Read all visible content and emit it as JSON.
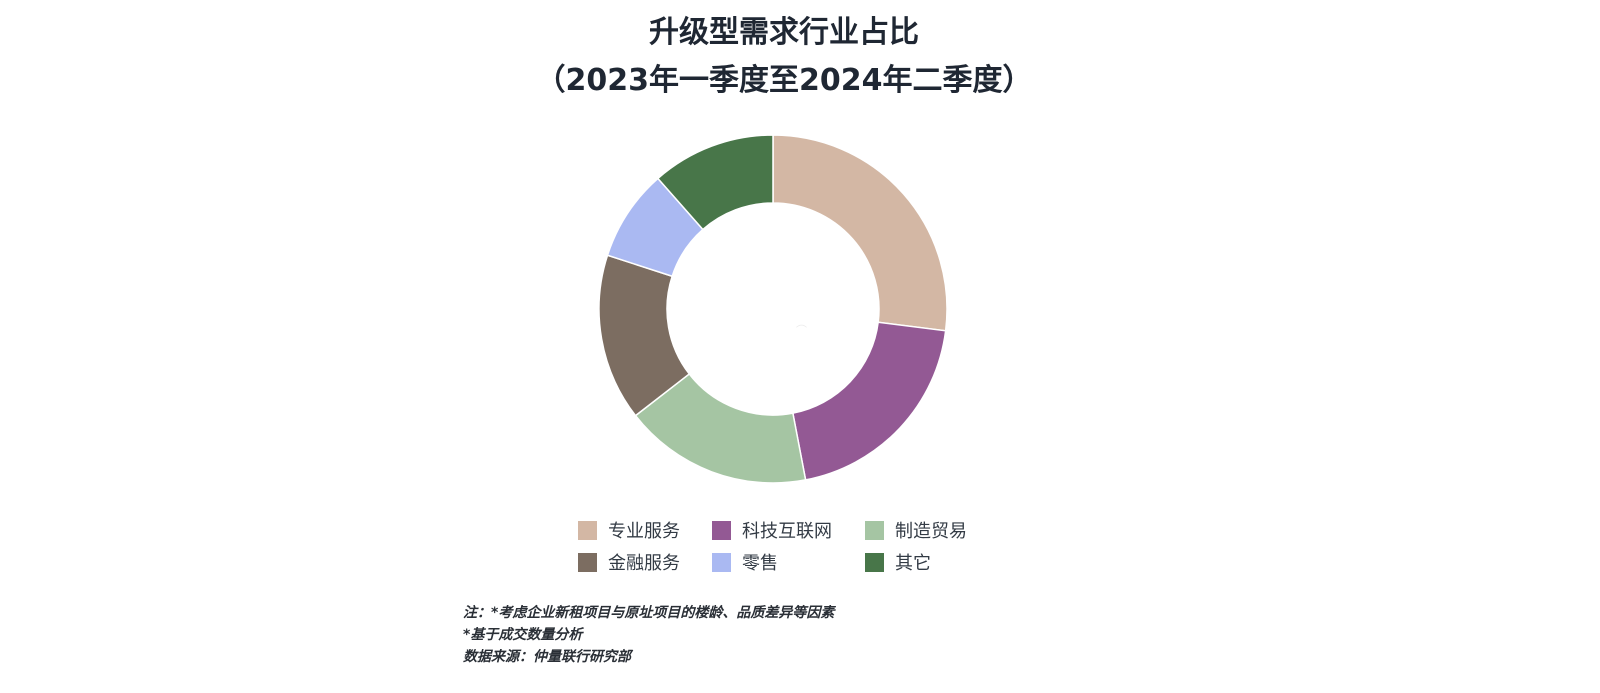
{
  "chart_data": {
    "type": "pie",
    "donut": true,
    "title": [
      "升级型需求行业占比",
      "（2023年一季度至2024年二季度）"
    ],
    "categories": [
      "专业服务",
      "科技互联网",
      "制造贸易",
      "金融服务",
      "零售",
      "其它"
    ],
    "values": [
      27,
      20,
      17.5,
      15.5,
      8.5,
      11.5
    ],
    "unit": "%",
    "colors": [
      "#d3b7a4",
      "#935994",
      "#a5c5a3",
      "#7c6d61",
      "#aab9f2",
      "#487649"
    ],
    "legend_position": "bottom"
  },
  "notes": [
    "注：*考虑企业新租项目与原址项目的楼龄、品质差异等因素",
    "*基于成交数量分析",
    "数据来源：仲量联行研究部"
  ]
}
